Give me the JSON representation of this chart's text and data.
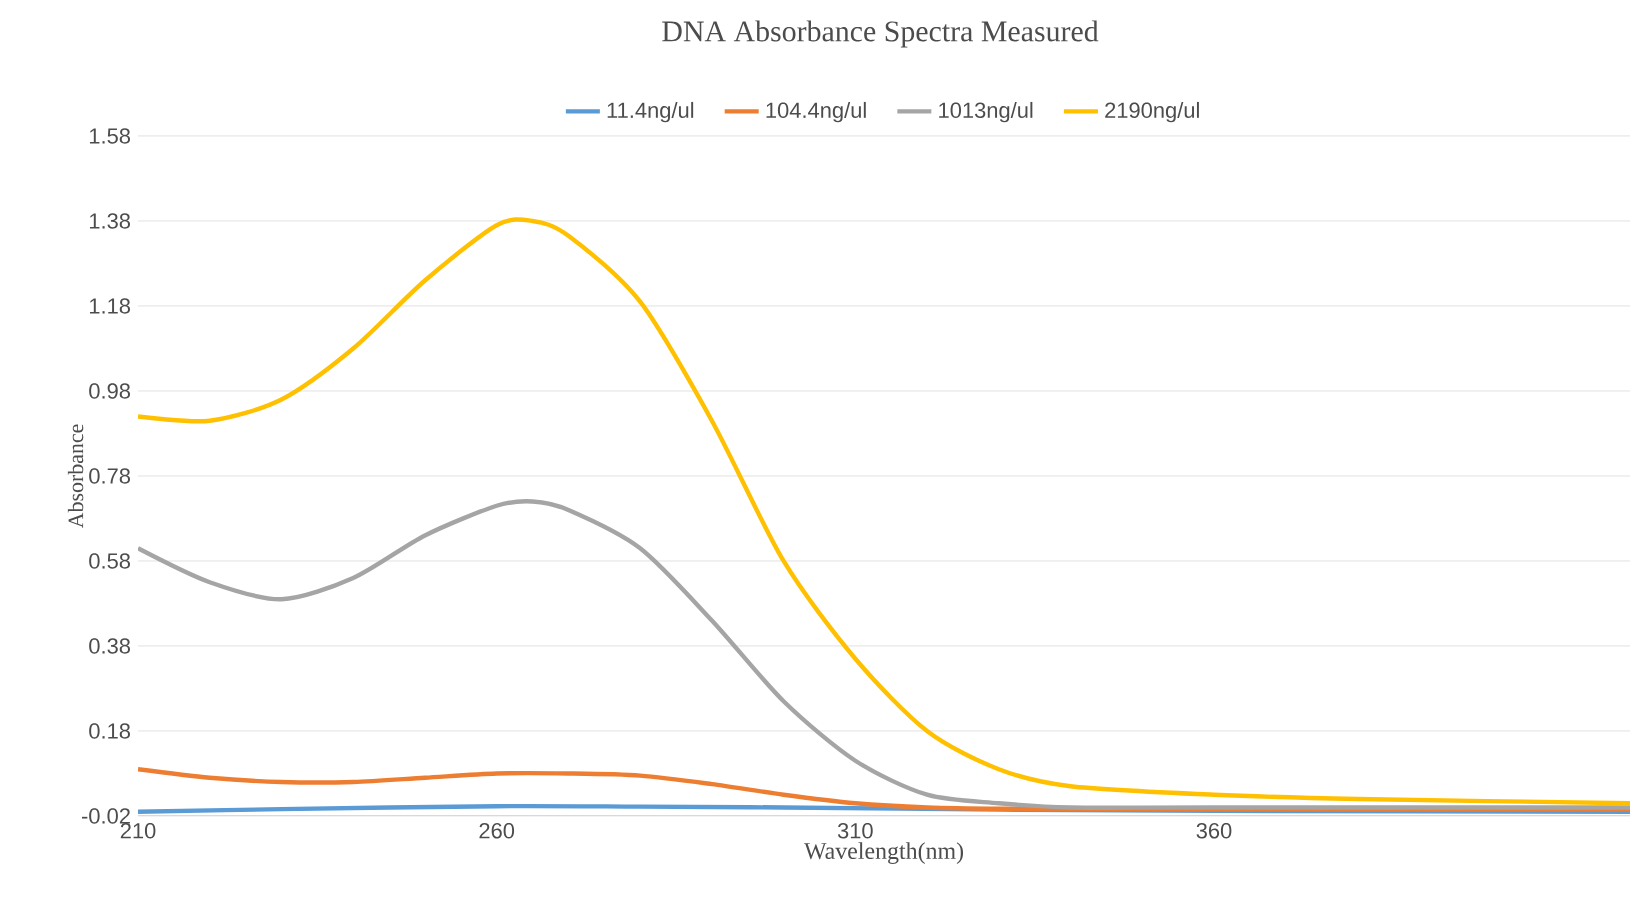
{
  "chart_data": {
    "type": "line",
    "title": "DNA Absorbance Spectra Measured",
    "xlabel": "Wavelength(nm)",
    "ylabel": "Absorbance",
    "xlim": [
      210,
      418
    ],
    "xticks": [
      210,
      260,
      310,
      360
    ],
    "ylim": [
      -0.02,
      1.58
    ],
    "yticks": [
      -0.02,
      0.18,
      0.38,
      0.58,
      0.78,
      0.98,
      1.18,
      1.38,
      1.58
    ],
    "grid": "y",
    "legend": "top",
    "series": [
      {
        "name": "11.4ng/ul",
        "color": "#5b9bd5",
        "x": [
          210,
          230,
          260,
          280,
          300,
          330,
          360,
          418
        ],
        "values": [
          -0.01,
          -0.004,
          0.003,
          0.002,
          0.0,
          -0.005,
          -0.008,
          -0.01
        ]
      },
      {
        "name": "104.4ng/ul",
        "color": "#ed7d31",
        "x": [
          210,
          220,
          230,
          240,
          250,
          260,
          270,
          280,
          290,
          300,
          310,
          320,
          330,
          360,
          418
        ],
        "values": [
          0.09,
          0.07,
          0.06,
          0.06,
          0.07,
          0.08,
          0.08,
          0.075,
          0.055,
          0.03,
          0.01,
          0.0,
          -0.003,
          -0.005,
          -0.005
        ]
      },
      {
        "name": "1013ng/ul",
        "color": "#a5a5a5",
        "x": [
          210,
          220,
          230,
          240,
          250,
          260,
          265,
          270,
          280,
          290,
          300,
          310,
          320,
          330,
          340,
          360,
          418
        ],
        "values": [
          0.61,
          0.53,
          0.49,
          0.54,
          0.64,
          0.71,
          0.72,
          0.7,
          0.61,
          0.44,
          0.25,
          0.11,
          0.03,
          0.01,
          0.0,
          0.0,
          0.0
        ]
      },
      {
        "name": "2190ng/ul",
        "color": "#ffc000",
        "x": [
          210,
          220,
          230,
          240,
          250,
          260,
          265,
          270,
          280,
          290,
          300,
          310,
          320,
          330,
          340,
          360,
          380,
          418
        ],
        "values": [
          0.92,
          0.91,
          0.96,
          1.08,
          1.24,
          1.37,
          1.38,
          1.345,
          1.19,
          0.91,
          0.58,
          0.35,
          0.18,
          0.09,
          0.05,
          0.03,
          0.02,
          0.01
        ]
      }
    ]
  }
}
